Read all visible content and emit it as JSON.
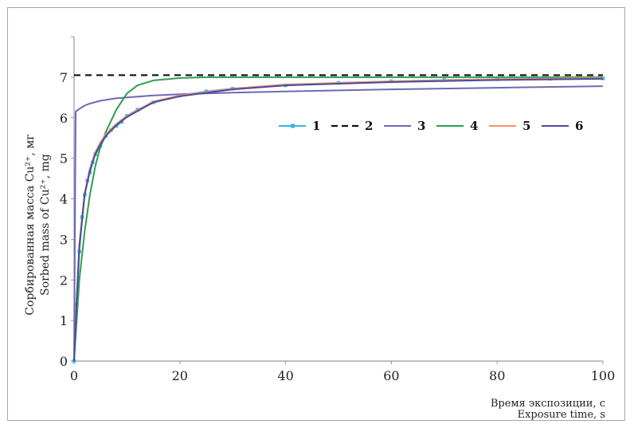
{
  "chart_data": {
    "type": "line",
    "ylabel_ru": "Сорбированная масса Cu²⁺, мг",
    "ylabel_en": "Sorbed mass of Cu²⁺, mg",
    "xlabel_ru": "Время экспозиции, с",
    "xlabel_en": "Exposure time, s",
    "xlim": [
      0,
      100
    ],
    "ylim": [
      0,
      8
    ],
    "x_ticks": [
      0,
      20,
      40,
      60,
      80,
      100
    ],
    "y_ticks": [
      0,
      1,
      2,
      3,
      4,
      5,
      6,
      7
    ],
    "legend_position": "upper-right-inside",
    "series": [
      {
        "name": "1",
        "color": "#33b5e5",
        "style": "solid-markers",
        "x": [
          0,
          0.5,
          1,
          1.5,
          2,
          2.5,
          3,
          3.5,
          4,
          5,
          6,
          7,
          8,
          9,
          10,
          12,
          15,
          20,
          25,
          30,
          40,
          50,
          60,
          70,
          80,
          90,
          100
        ],
        "y": [
          0,
          1.4,
          2.7,
          3.55,
          4.1,
          4.45,
          4.65,
          4.9,
          5.1,
          5.3,
          5.55,
          5.7,
          5.8,
          5.9,
          6.05,
          6.2,
          6.38,
          6.55,
          6.65,
          6.72,
          6.8,
          6.86,
          6.9,
          6.93,
          6.95,
          6.96,
          6.97
        ]
      },
      {
        "name": "2",
        "color": "#111111",
        "style": "dashed",
        "x": [
          0,
          100
        ],
        "y": [
          7.05,
          7.05
        ]
      },
      {
        "name": "3",
        "color": "#6a6ab8",
        "style": "solid",
        "x": [
          0,
          0.3,
          1,
          2,
          3,
          5,
          8,
          10,
          15,
          20,
          30,
          40,
          60,
          80,
          100
        ],
        "y": [
          0,
          6.15,
          6.22,
          6.3,
          6.35,
          6.42,
          6.48,
          6.5,
          6.55,
          6.58,
          6.62,
          6.65,
          6.7,
          6.74,
          6.78
        ]
      },
      {
        "name": "4",
        "color": "#2e9e4e",
        "style": "solid",
        "x": [
          0,
          1,
          2,
          3,
          4,
          5,
          6,
          8,
          10,
          12,
          15,
          20,
          25,
          30,
          40,
          60,
          80,
          100
        ],
        "y": [
          0,
          2.0,
          3.2,
          4.1,
          4.8,
          5.3,
          5.65,
          6.2,
          6.6,
          6.8,
          6.92,
          6.98,
          7.0,
          7.0,
          7.0,
          7.0,
          7.0,
          7.0
        ]
      },
      {
        "name": "5",
        "color": "#f0956a",
        "style": "solid",
        "x": [
          0,
          0.5,
          1,
          2,
          3,
          4,
          5,
          6,
          8,
          10,
          15,
          20,
          30,
          40,
          60,
          80,
          100
        ],
        "y": [
          0,
          1.6,
          2.9,
          4.15,
          4.75,
          5.15,
          5.4,
          5.6,
          5.85,
          6.05,
          6.4,
          6.55,
          6.72,
          6.82,
          6.9,
          6.95,
          6.98
        ]
      },
      {
        "name": "6",
        "color": "#4a4aa0",
        "style": "solid",
        "x": [
          0,
          0.5,
          1,
          2,
          3,
          4,
          5,
          6,
          8,
          10,
          15,
          20,
          30,
          40,
          60,
          80,
          100
        ],
        "y": [
          0,
          1.5,
          2.8,
          4.1,
          4.7,
          5.1,
          5.35,
          5.55,
          5.82,
          6.02,
          6.38,
          6.53,
          6.7,
          6.8,
          6.88,
          6.93,
          6.96
        ]
      }
    ]
  }
}
